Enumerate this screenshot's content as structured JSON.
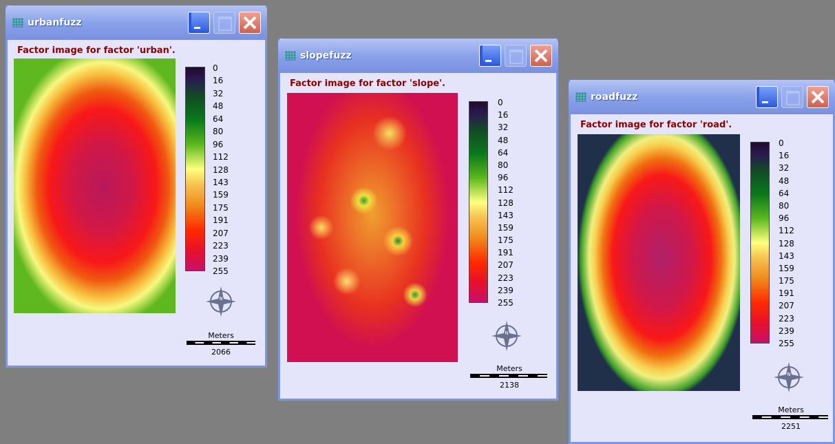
{
  "windows": [
    {
      "title": "urbanfuzz",
      "caption": "Factor image for factor 'urban'.",
      "legend": [
        0,
        16,
        32,
        48,
        64,
        80,
        96,
        112,
        128,
        143,
        159,
        175,
        191,
        207,
        223,
        239,
        255
      ],
      "scale_unit": "Meters",
      "scale_value": 2066
    },
    {
      "title": "slopefuzz",
      "caption": "Factor image for factor 'slope'.",
      "legend": [
        0,
        16,
        32,
        48,
        64,
        80,
        96,
        112,
        128,
        143,
        159,
        175,
        191,
        207,
        223,
        239,
        255
      ],
      "scale_unit": "Meters",
      "scale_value": 2138
    },
    {
      "title": "roadfuzz",
      "caption": "Factor image for factor 'road'.",
      "legend": [
        0,
        16,
        32,
        48,
        64,
        80,
        96,
        112,
        128,
        143,
        159,
        175,
        191,
        207,
        223,
        239,
        255
      ],
      "scale_unit": "Meters",
      "scale_value": 2251
    }
  ]
}
